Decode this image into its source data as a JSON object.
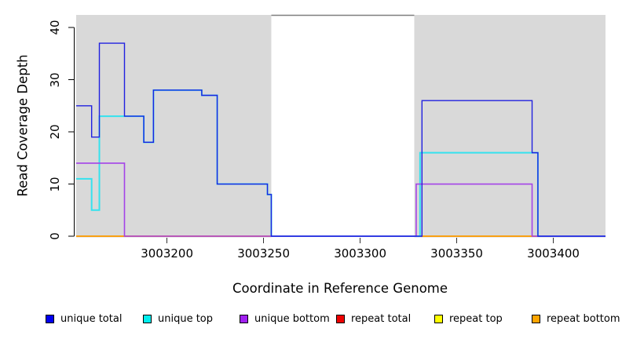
{
  "chart_data": {
    "type": "step-line",
    "title": "",
    "xlabel": "Coordinate in Reference Genome",
    "ylabel": "Read Coverage Depth",
    "xlim": [
      3003153,
      3003427
    ],
    "ylim": [
      0,
      42.4
    ],
    "x_ticks": [
      3003200,
      3003250,
      3003300,
      3003350,
      3003400
    ],
    "y_ticks": [
      0,
      10,
      20,
      30,
      40
    ],
    "grid": false,
    "background_color": "#ffffff",
    "shaded_regions": [
      {
        "name": "repeat-region-1",
        "start": 3003153,
        "end": 3003254,
        "color": "#D9D9D9"
      },
      {
        "name": "repeat-region-2",
        "start": 3003328,
        "end": 3003427,
        "color": "#D9D9D9"
      }
    ],
    "gap_top_border_color": "#7F7F7F",
    "series": [
      {
        "name": "repeat total",
        "color": "#DD0000",
        "width": 1.5,
        "points": [
          [
            3003153,
            0
          ],
          [
            3003427,
            0
          ]
        ]
      },
      {
        "name": "repeat top",
        "color": "#FFFF00",
        "width": 1.2,
        "points": [
          [
            3003153,
            0
          ],
          [
            3003427,
            0
          ]
        ]
      },
      {
        "name": "repeat bottom",
        "color": "#FFA500",
        "width": 1.4,
        "points": [
          [
            3003153,
            0
          ],
          [
            3003427,
            0
          ]
        ]
      },
      {
        "name": "unique top",
        "color": "#35E2EE",
        "width": 2.0,
        "points": [
          [
            3003153,
            11
          ],
          [
            3003161,
            11
          ],
          [
            3003161,
            5
          ],
          [
            3003165,
            5
          ],
          [
            3003165,
            23
          ],
          [
            3003188,
            23
          ],
          [
            3003188,
            18
          ],
          [
            3003193,
            18
          ],
          [
            3003193,
            28
          ],
          [
            3003218,
            28
          ],
          [
            3003218,
            27
          ],
          [
            3003226,
            27
          ],
          [
            3003226,
            10
          ],
          [
            3003252,
            10
          ],
          [
            3003252,
            8
          ],
          [
            3003254,
            8
          ],
          [
            3003254,
            0
          ],
          [
            3003331,
            0
          ],
          [
            3003331,
            16
          ],
          [
            3003392,
            16
          ],
          [
            3003392,
            0
          ],
          [
            3003427,
            0
          ]
        ]
      },
      {
        "name": "unique bottom",
        "color": "#A443E8",
        "width": 1.6,
        "points": [
          [
            3003153,
            14
          ],
          [
            3003178,
            14
          ],
          [
            3003178,
            0
          ],
          [
            3003329,
            0
          ],
          [
            3003329,
            10
          ],
          [
            3003389,
            10
          ],
          [
            3003389,
            0
          ],
          [
            3003427,
            0
          ]
        ]
      },
      {
        "name": "unique total",
        "color": "#2020E0",
        "width": 1.4,
        "points": [
          [
            3003153,
            25
          ],
          [
            3003161,
            25
          ],
          [
            3003161,
            19
          ],
          [
            3003165,
            19
          ],
          [
            3003165,
            37
          ],
          [
            3003178,
            37
          ],
          [
            3003178,
            23
          ],
          [
            3003188,
            23
          ],
          [
            3003188,
            18
          ],
          [
            3003193,
            18
          ],
          [
            3003193,
            28
          ],
          [
            3003218,
            28
          ],
          [
            3003218,
            27
          ],
          [
            3003226,
            27
          ],
          [
            3003226,
            10
          ],
          [
            3003252,
            10
          ],
          [
            3003252,
            8
          ],
          [
            3003254,
            8
          ],
          [
            3003254,
            0
          ],
          [
            3003332,
            0
          ],
          [
            3003332,
            26
          ],
          [
            3003389,
            26
          ],
          [
            3003389,
            16
          ],
          [
            3003392,
            16
          ],
          [
            3003392,
            0
          ],
          [
            3003427,
            0
          ]
        ]
      }
    ],
    "legend": [
      {
        "label": "unique total",
        "color": "#0000EE"
      },
      {
        "label": "unique top",
        "color": "#00EEEE"
      },
      {
        "label": "unique bottom",
        "color": "#A020F0"
      },
      {
        "label": "repeat total",
        "color": "#EE0000"
      },
      {
        "label": "repeat top",
        "color": "#FFFF00"
      },
      {
        "label": "repeat bottom",
        "color": "#FFA500"
      }
    ],
    "legend_position": "bottom"
  }
}
